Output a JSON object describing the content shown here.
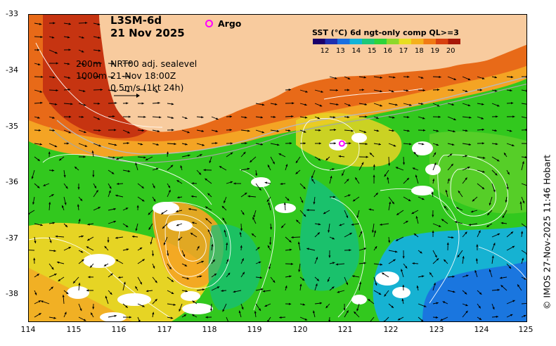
{
  "header": {
    "product": "L3SM-6d",
    "date": "21 Nov 2025",
    "argo_label": "Argo"
  },
  "legend": {
    "depth_1": "200m",
    "depth_2": "1000m",
    "sealevel_label": "NRT00 adj. sealevel",
    "sealevel_time": "21-Nov 18:00Z",
    "arrow_scale": "0.5m/s (1kt 24h)"
  },
  "colorbar": {
    "title": "SST (°C) 6d ngt-only comp QL>=3",
    "ticks": [
      "12",
      "13",
      "14",
      "15",
      "16",
      "17",
      "18",
      "19",
      "20"
    ],
    "colors": [
      "#1a006b",
      "#1f2fb0",
      "#1a6fe0",
      "#12b4d8",
      "#1ec878",
      "#2dd43a",
      "#8ed82a",
      "#e8de22",
      "#f4b01c",
      "#f07a14",
      "#d84010",
      "#a81808"
    ]
  },
  "axes": {
    "x_ticks": [
      "114",
      "115",
      "116",
      "117",
      "118",
      "119",
      "120",
      "121",
      "122",
      "123",
      "124",
      "125"
    ],
    "y_ticks": [
      "-33",
      "-34",
      "-35",
      "-36",
      "-37",
      "-38"
    ],
    "lon_range": [
      114,
      125
    ],
    "lat_range": [
      -38.5,
      -33
    ]
  },
  "map_colors": {
    "land": "#f8cb9e",
    "warm": "#e86a18",
    "hot": "#c02a10",
    "orange": "#f4a424",
    "yellow": "#e6d424",
    "green": "#32c81e",
    "cool": "#16bf7a",
    "cyan": "#16b2d2",
    "blue": "#1b6fe0"
  },
  "argo_float": {
    "lon": 120.9,
    "lat": -35.3
  },
  "credit": "© IMOS 27-Nov-2025 11:46 Hobart"
}
